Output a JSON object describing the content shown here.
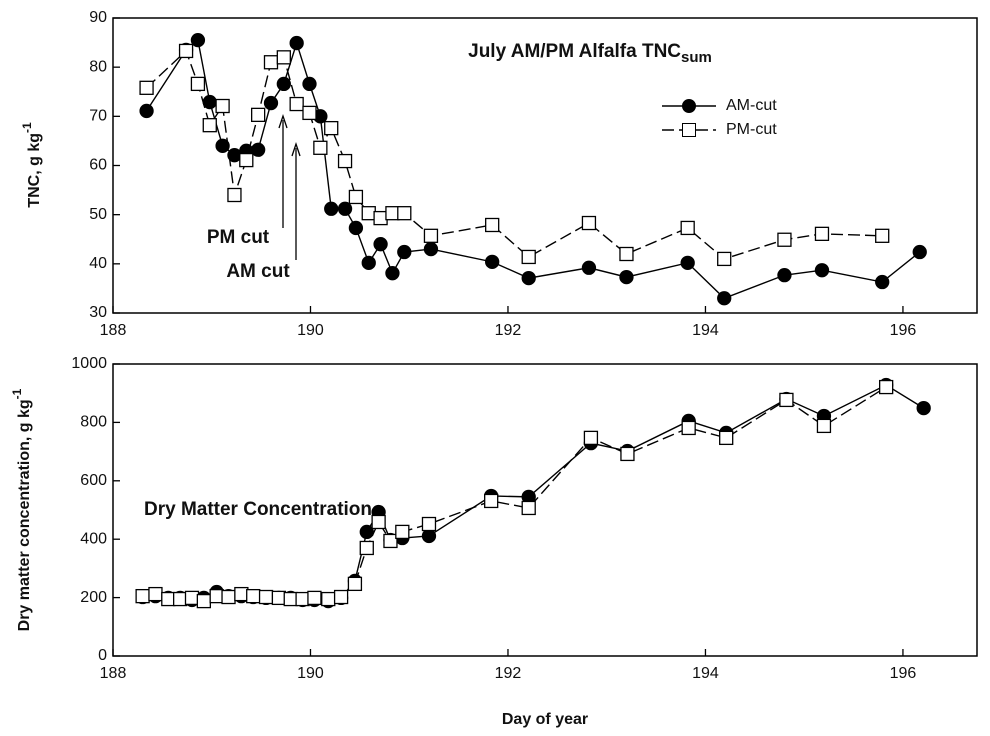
{
  "chart_data": [
    {
      "type": "line",
      "title": "July AM/PM Alfalfa TNC",
      "title_subscript": "sum",
      "ylabel": "TNC, g kg",
      "ylabel_superscript": "-1",
      "annotations": [
        "PM cut",
        "AM cut"
      ],
      "xlim": [
        188,
        196.75
      ],
      "xticks": [
        188,
        190,
        192,
        194,
        196
      ],
      "ylim": [
        30,
        90
      ],
      "yticks": [
        30,
        40,
        50,
        60,
        70,
        80,
        90
      ],
      "legend": "upper right",
      "series": [
        {
          "name": "AM-cut",
          "color": "#000000",
          "marker": "circle",
          "marker_fill": "#000000",
          "linestyle": "solid",
          "x": [
            188.34,
            188.74,
            188.86,
            188.98,
            189.11,
            189.23,
            189.35,
            189.47,
            189.6,
            189.73,
            189.86,
            189.99,
            190.1,
            190.21,
            190.35,
            190.46,
            190.59,
            190.71,
            190.83,
            190.95,
            191.22,
            191.84,
            192.21,
            192.82,
            193.2,
            193.82,
            194.19,
            194.8,
            195.18,
            195.79,
            196.17
          ],
          "values": [
            71.1,
            83.5,
            85.5,
            72.9,
            64,
            62.1,
            63,
            63.2,
            72.7,
            76.6,
            84.9,
            76.6,
            70,
            51.2,
            51.2,
            47.3,
            40.2,
            44,
            38.1,
            42.4,
            43,
            40.4,
            37.1,
            39.2,
            37.3,
            40.2,
            33,
            37.7,
            38.7,
            36.3,
            42.4
          ]
        },
        {
          "name": "PM-cut",
          "color": "#000000",
          "marker": "square",
          "marker_fill": "#ffffff",
          "linestyle": "dashed",
          "x": [
            188.34,
            188.74,
            188.86,
            188.98,
            189.11,
            189.23,
            189.35,
            189.47,
            189.6,
            189.73,
            189.86,
            189.99,
            190.1,
            190.21,
            190.35,
            190.46,
            190.59,
            190.71,
            190.83,
            190.95,
            191.22,
            191.84,
            192.21,
            192.82,
            193.2,
            193.82,
            194.19,
            194.8,
            195.18,
            195.79
          ],
          "values": [
            75.8,
            83.3,
            76.6,
            68.2,
            72.1,
            54,
            61.1,
            70.3,
            81,
            82,
            72.5,
            70.7,
            63.6,
            67.6,
            60.9,
            53.6,
            50.3,
            49.3,
            50.3,
            50.3,
            45.7,
            47.9,
            41.4,
            48.3,
            42,
            47.3,
            41,
            44.9,
            46.1,
            45.7
          ]
        }
      ]
    },
    {
      "type": "line",
      "title": "Dry Matter Concentration",
      "ylabel": "Dry matter concentration, g kg",
      "ylabel_superscript": "-1",
      "xlabel": "Day of year",
      "xlim": [
        188,
        196.75
      ],
      "xticks": [
        188,
        190,
        192,
        194,
        196
      ],
      "ylim": [
        0,
        1000
      ],
      "yticks": [
        0,
        200,
        400,
        600,
        800,
        1000
      ],
      "series": [
        {
          "name": "AM-cut",
          "color": "#000000",
          "marker": "circle",
          "marker_fill": "#000000",
          "linestyle": "solid",
          "x": [
            188.3,
            188.43,
            188.56,
            188.68,
            188.8,
            188.92,
            189.05,
            189.17,
            189.3,
            189.42,
            189.55,
            189.68,
            189.8,
            189.92,
            190.04,
            190.18,
            190.31,
            190.45,
            190.57,
            190.69,
            190.81,
            190.93,
            191.2,
            191.83,
            192.21,
            192.84,
            193.21,
            193.83,
            194.21,
            194.82,
            195.2,
            195.83,
            196.21
          ],
          "values": [
            202,
            205,
            199,
            199,
            192,
            199,
            219,
            205,
            205,
            202,
            199,
            199,
            199,
            192,
            192,
            188,
            199,
            257,
            425,
            493,
            397,
            404,
            411,
            548,
            545,
            729,
            702,
            805,
            764,
            880,
            822,
            928,
            849
          ]
        },
        {
          "name": "PM-cut",
          "color": "#000000",
          "marker": "square",
          "marker_fill": "#ffffff",
          "linestyle": "dashed",
          "x": [
            188.3,
            188.43,
            188.56,
            188.68,
            188.8,
            188.92,
            189.05,
            189.17,
            189.3,
            189.42,
            189.55,
            189.68,
            189.8,
            189.92,
            190.04,
            190.18,
            190.31,
            190.45,
            190.57,
            190.69,
            190.81,
            190.93,
            191.2,
            191.83,
            192.21,
            192.84,
            193.21,
            193.83,
            194.21,
            194.82,
            195.2,
            195.83
          ],
          "values": [
            205,
            212,
            195,
            195,
            199,
            188,
            205,
            202,
            212,
            205,
            202,
            199,
            195,
            195,
            199,
            195,
            202,
            247,
            370,
            459,
            394,
            425,
            452,
            531,
            507,
            747,
            692,
            781,
            747,
            877,
            788,
            921
          ]
        }
      ]
    }
  ]
}
